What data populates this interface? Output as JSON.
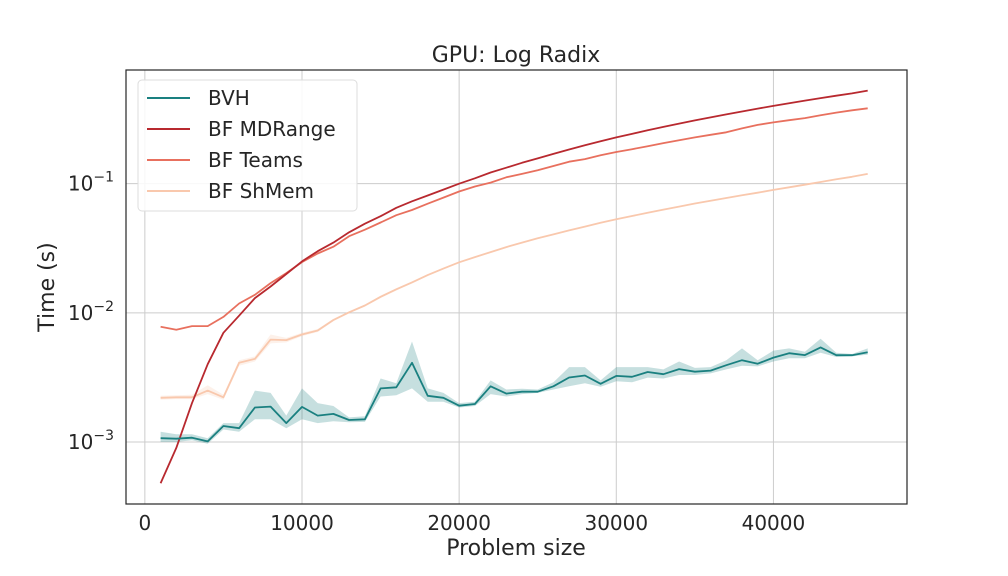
{
  "chart_data": {
    "type": "line",
    "title": "GPU: Log Radix",
    "xlabel": "Problem size",
    "ylabel": "Time (s)",
    "y_scale": "log",
    "xlim": [
      -1200,
      48500
    ],
    "ylim_log10": [
      -3.48,
      -0.12
    ],
    "x_ticks": [
      0,
      10000,
      20000,
      30000,
      40000
    ],
    "x_tick_labels": [
      "0",
      "10000",
      "20000",
      "30000",
      "40000"
    ],
    "y_ticks": [
      0.001,
      0.01,
      0.1
    ],
    "y_tick_labels": [
      {
        "base": "10",
        "exp": "−3"
      },
      {
        "base": "10",
        "exp": "−2"
      },
      {
        "base": "10",
        "exp": "−1"
      }
    ],
    "grid": true,
    "legend_position": "top-left",
    "x": [
      1000,
      2000,
      3000,
      4000,
      5000,
      6000,
      7000,
      8000,
      9000,
      10000,
      11000,
      12000,
      13000,
      14000,
      15000,
      16000,
      17000,
      18000,
      19000,
      20000,
      21000,
      22000,
      23000,
      24000,
      25000,
      26000,
      27000,
      28000,
      29000,
      30000,
      31000,
      32000,
      33000,
      34000,
      35000,
      36000,
      37000,
      38000,
      39000,
      40000,
      41000,
      42000,
      43000,
      44000,
      45000,
      46000
    ],
    "series": [
      {
        "name": "BVH",
        "color": "#1a8080",
        "band": true,
        "values": [
          0.00107,
          0.00106,
          0.00108,
          0.00101,
          0.00133,
          0.00128,
          0.00185,
          0.00188,
          0.0014,
          0.00187,
          0.0016,
          0.00165,
          0.00148,
          0.0015,
          0.0026,
          0.00265,
          0.0041,
          0.00228,
          0.0022,
          0.00191,
          0.00197,
          0.0027,
          0.00237,
          0.00245,
          0.00245,
          0.0027,
          0.00316,
          0.00327,
          0.00282,
          0.00325,
          0.0032,
          0.00348,
          0.00335,
          0.00367,
          0.0035,
          0.00357,
          0.00393,
          0.0043,
          0.00404,
          0.0045,
          0.00487,
          0.00471,
          0.0054,
          0.0047,
          0.0047,
          0.00495
        ],
        "lower": [
          0.001,
          0.001,
          0.00103,
          0.00097,
          0.00125,
          0.0012,
          0.0015,
          0.0015,
          0.00128,
          0.0015,
          0.0014,
          0.00145,
          0.00142,
          0.00143,
          0.00225,
          0.0023,
          0.0026,
          0.00205,
          0.00205,
          0.00185,
          0.0019,
          0.00235,
          0.00225,
          0.00235,
          0.0024,
          0.00255,
          0.0027,
          0.00285,
          0.00268,
          0.00295,
          0.0029,
          0.00315,
          0.0031,
          0.0033,
          0.0033,
          0.0034,
          0.00365,
          0.0039,
          0.00385,
          0.0042,
          0.00445,
          0.00445,
          0.0049,
          0.00455,
          0.0046,
          0.00475
        ],
        "upper": [
          0.0012,
          0.00115,
          0.00115,
          0.00107,
          0.0014,
          0.0014,
          0.0025,
          0.0024,
          0.0016,
          0.0026,
          0.002,
          0.0019,
          0.00155,
          0.00158,
          0.0031,
          0.00285,
          0.006,
          0.0026,
          0.0024,
          0.002,
          0.00205,
          0.003,
          0.00255,
          0.00258,
          0.00255,
          0.0029,
          0.0038,
          0.0038,
          0.003,
          0.0038,
          0.0038,
          0.0038,
          0.00365,
          0.0042,
          0.00375,
          0.0038,
          0.0043,
          0.0053,
          0.0043,
          0.0051,
          0.0053,
          0.005,
          0.0063,
          0.0049,
          0.0048,
          0.0053
        ]
      },
      {
        "name": "BF MDRange",
        "color": "#b8292f",
        "band": false,
        "values": [
          0.00048,
          0.0009,
          0.002,
          0.004,
          0.007,
          0.0095,
          0.013,
          0.016,
          0.02,
          0.025,
          0.03,
          0.035,
          0.042,
          0.049,
          0.056,
          0.065,
          0.073,
          0.081,
          0.09,
          0.1,
          0.11,
          0.122,
          0.133,
          0.145,
          0.157,
          0.17,
          0.184,
          0.198,
          0.213,
          0.228,
          0.243,
          0.259,
          0.275,
          0.292,
          0.309,
          0.326,
          0.344,
          0.362,
          0.381,
          0.4,
          0.42,
          0.44,
          0.46,
          0.48,
          0.5,
          0.525
        ]
      },
      {
        "name": "BF Teams",
        "color": "#e8705e",
        "band": false,
        "values": [
          0.0078,
          0.0074,
          0.0079,
          0.0079,
          0.0093,
          0.0118,
          0.0138,
          0.017,
          0.0203,
          0.0247,
          0.0288,
          0.0325,
          0.0392,
          0.044,
          0.05,
          0.057,
          0.0625,
          0.07,
          0.078,
          0.087,
          0.095,
          0.102,
          0.112,
          0.119,
          0.127,
          0.137,
          0.148,
          0.155,
          0.166,
          0.176,
          0.185,
          0.195,
          0.206,
          0.217,
          0.228,
          0.239,
          0.25,
          0.268,
          0.285,
          0.298,
          0.31,
          0.322,
          0.338,
          0.355,
          0.37,
          0.383
        ]
      },
      {
        "name": "BF ShMem",
        "color": "#f9c8ad",
        "band": true,
        "values": [
          0.0022,
          0.00222,
          0.00222,
          0.0025,
          0.00222,
          0.0041,
          0.0044,
          0.0062,
          0.00615,
          0.0068,
          0.0073,
          0.0088,
          0.0101,
          0.0114,
          0.0133,
          0.0152,
          0.0172,
          0.0196,
          0.022,
          0.0246,
          0.027,
          0.0295,
          0.0323,
          0.035,
          0.0378,
          0.0405,
          0.0435,
          0.0465,
          0.0498,
          0.053,
          0.0562,
          0.0595,
          0.063,
          0.0664,
          0.0702,
          0.0738,
          0.0775,
          0.0813,
          0.0852,
          0.0895,
          0.0938,
          0.0982,
          0.103,
          0.108,
          0.113,
          0.119
        ],
        "lower": [
          0.00212,
          0.00215,
          0.00215,
          0.00235,
          0.00212,
          0.0039,
          0.0042,
          0.0058,
          0.0059,
          0.0066,
          0.0071,
          0.0086,
          0.0099,
          0.0112,
          0.013,
          0.0149,
          0.0169,
          0.0193,
          0.0217,
          0.0243,
          0.0267,
          0.0292,
          0.032,
          0.0347,
          0.0375,
          0.0402,
          0.0432,
          0.0462,
          0.0495,
          0.0527,
          0.0559,
          0.0592,
          0.0627,
          0.0661,
          0.0699,
          0.0735,
          0.0772,
          0.081,
          0.0849,
          0.0892,
          0.0935,
          0.0979,
          0.1027,
          0.1077,
          0.1127,
          0.1187
        ],
        "upper": [
          0.00228,
          0.0023,
          0.00232,
          0.00275,
          0.00232,
          0.0043,
          0.0046,
          0.0068,
          0.0064,
          0.007,
          0.0075,
          0.009,
          0.0103,
          0.0116,
          0.0136,
          0.0155,
          0.0175,
          0.0199,
          0.0223,
          0.0249,
          0.0273,
          0.0298,
          0.0326,
          0.0353,
          0.0381,
          0.0408,
          0.0438,
          0.0468,
          0.0501,
          0.0533,
          0.0565,
          0.0598,
          0.0633,
          0.0667,
          0.0705,
          0.0741,
          0.0778,
          0.0816,
          0.0855,
          0.0898,
          0.0941,
          0.0985,
          0.1033,
          0.1083,
          0.1133,
          0.1193
        ]
      }
    ]
  }
}
